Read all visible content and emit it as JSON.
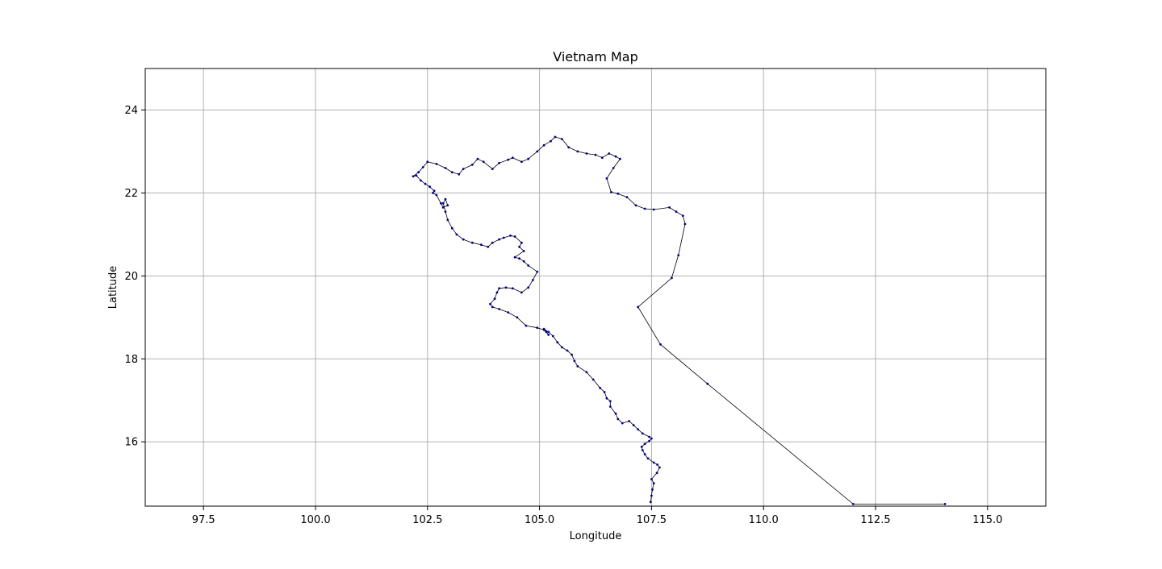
{
  "chart_data": {
    "type": "line",
    "title": "Vietnam Map",
    "xlabel": "Longitude",
    "ylabel": "Latitude",
    "xlim": [
      96.2,
      116.3
    ],
    "ylim": [
      14.45,
      25.0
    ],
    "xticks": [
      "97.5",
      "100.0",
      "102.5",
      "105.0",
      "107.5",
      "110.0",
      "112.5",
      "115.0"
    ],
    "yticks": [
      "16",
      "18",
      "20",
      "22",
      "24"
    ],
    "grid": true,
    "legend": "none",
    "series": [
      {
        "line_color": "#000000",
        "marker_color": "#00008b",
        "x": [
          107.48,
          107.5,
          107.52,
          107.55,
          107.5,
          107.62,
          107.68,
          107.63,
          107.55,
          107.42,
          107.35,
          107.3,
          107.28,
          107.35,
          107.45,
          107.5,
          107.45,
          107.3,
          107.2,
          107.1,
          107.0,
          106.85,
          106.75,
          106.7,
          106.58,
          106.58,
          106.5,
          106.45,
          106.35,
          106.2,
          106.05,
          105.85,
          105.78,
          105.72,
          105.62,
          105.5,
          105.4,
          105.3,
          105.2,
          105.1,
          105.15,
          105.2,
          105.1,
          104.95,
          104.7,
          104.5,
          104.3,
          104.1,
          103.95,
          103.9,
          104.0,
          104.05,
          104.1,
          104.25,
          104.4,
          104.6,
          104.75,
          104.85,
          104.95,
          104.75,
          104.65,
          104.55,
          104.45,
          104.65,
          104.55,
          104.6,
          104.45,
          104.35,
          104.2,
          104.1,
          103.95,
          103.85,
          103.7,
          103.5,
          103.3,
          103.15,
          103.05,
          102.95,
          102.9,
          102.85,
          102.9,
          102.95,
          102.85,
          102.8,
          102.7,
          102.62,
          102.65,
          102.55,
          102.45,
          102.35,
          102.25,
          102.18,
          102.3,
          102.4,
          102.5,
          102.7,
          102.9,
          103.05,
          103.2,
          103.3,
          103.5,
          103.62,
          103.75,
          103.95,
          104.1,
          104.3,
          104.4,
          104.6,
          104.75,
          104.95,
          105.1,
          105.25,
          105.35,
          105.5,
          105.65,
          105.85,
          106.05,
          106.25,
          106.4,
          106.55,
          106.7,
          106.8,
          106.65,
          106.5,
          106.6,
          106.75,
          106.95,
          107.15,
          107.35,
          107.55,
          107.9,
          108.05,
          108.2,
          108.25,
          108.1,
          107.95,
          107.2,
          107.7,
          108.75,
          112.0,
          114.05
        ],
        "y": [
          14.55,
          14.7,
          14.85,
          15.0,
          15.1,
          15.25,
          15.38,
          15.45,
          15.5,
          15.6,
          15.7,
          15.8,
          15.88,
          15.95,
          16.02,
          16.08,
          16.12,
          16.2,
          16.3,
          16.4,
          16.5,
          16.45,
          16.55,
          16.68,
          16.85,
          16.98,
          17.05,
          17.2,
          17.3,
          17.5,
          17.68,
          17.82,
          17.95,
          18.1,
          18.2,
          18.28,
          18.4,
          18.55,
          18.65,
          18.72,
          18.65,
          18.58,
          18.7,
          18.75,
          18.8,
          19.0,
          19.12,
          19.2,
          19.25,
          19.32,
          19.45,
          19.6,
          19.7,
          19.72,
          19.7,
          19.6,
          19.72,
          19.9,
          20.1,
          20.25,
          20.35,
          20.42,
          20.45,
          20.6,
          20.7,
          20.8,
          20.95,
          20.97,
          20.92,
          20.88,
          20.8,
          20.7,
          20.75,
          20.8,
          20.88,
          21.0,
          21.15,
          21.35,
          21.55,
          21.75,
          21.85,
          21.7,
          21.65,
          21.75,
          21.95,
          22.0,
          22.05,
          22.15,
          22.22,
          22.3,
          22.42,
          22.4,
          22.5,
          22.62,
          22.75,
          22.7,
          22.6,
          22.5,
          22.45,
          22.58,
          22.68,
          22.82,
          22.75,
          22.58,
          22.72,
          22.8,
          22.85,
          22.75,
          22.82,
          23.0,
          23.15,
          23.25,
          23.35,
          23.3,
          23.1,
          23.0,
          22.95,
          22.92,
          22.85,
          22.95,
          22.88,
          22.82,
          22.6,
          22.35,
          22.02,
          21.98,
          21.9,
          21.7,
          21.62,
          21.6,
          21.65,
          21.55,
          21.45,
          21.25,
          20.5,
          19.95,
          19.25,
          18.35,
          17.4,
          14.5,
          14.5
        ]
      }
    ]
  }
}
